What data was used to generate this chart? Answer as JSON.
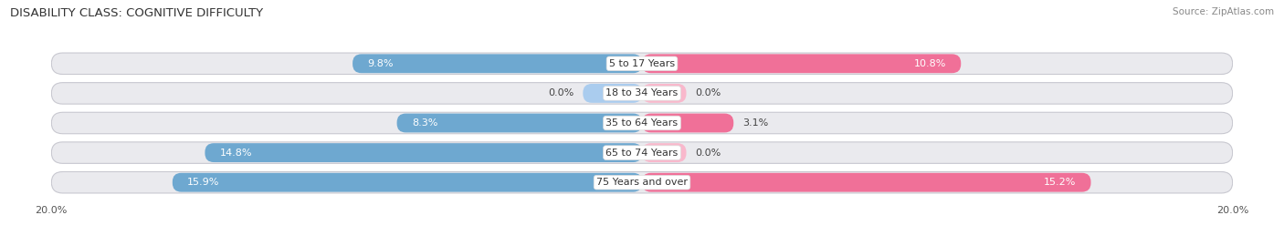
{
  "title": "DISABILITY CLASS: COGNITIVE DIFFICULTY",
  "source": "Source: ZipAtlas.com",
  "categories": [
    "5 to 17 Years",
    "18 to 34 Years",
    "35 to 64 Years",
    "65 to 74 Years",
    "75 Years and over"
  ],
  "male_values": [
    9.8,
    0.0,
    8.3,
    14.8,
    15.9
  ],
  "female_values": [
    10.8,
    0.0,
    3.1,
    0.0,
    15.2
  ],
  "male_display": [
    9.8,
    2.0,
    8.3,
    14.8,
    15.9
  ],
  "female_display": [
    10.8,
    1.5,
    3.1,
    1.5,
    15.2
  ],
  "max_val": 20.0,
  "male_color": "#6EA8D0",
  "female_color": "#F07098",
  "male_color_light": "#AACCEE",
  "female_color_light": "#F9B8CC",
  "bar_bg_color": "#EAEAEE",
  "row_sep_color": "#C8C8D0",
  "bar_height": 0.72,
  "background_color": "#FFFFFF",
  "title_fontsize": 9.5,
  "label_fontsize": 8,
  "tick_fontsize": 8,
  "source_fontsize": 7.5
}
